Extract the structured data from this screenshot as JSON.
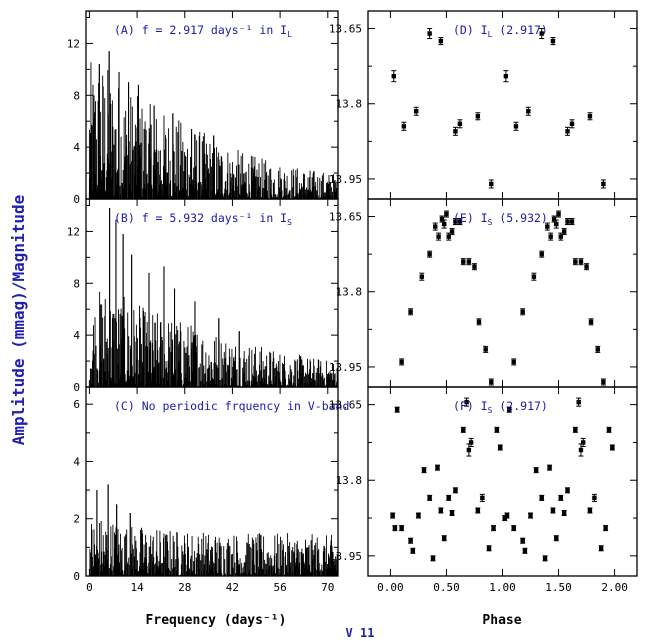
{
  "figure": {
    "y_title": "Amplitude (mmag)/Magnitude",
    "star_label": "V 11"
  },
  "chart_data": [
    {
      "id": "A",
      "type": "bar",
      "label": "(A) f = 2.917 days⁻¹ in I",
      "label_sub": "L",
      "xlim": [
        -1,
        73
      ],
      "ylim": [
        0,
        14.5
      ],
      "x_ticks": [
        0,
        14,
        28,
        42,
        56,
        70
      ],
      "y_ticks": [
        0,
        4,
        8,
        12
      ],
      "xlabel": "",
      "envelope": [
        [
          0,
          10.5
        ],
        [
          3,
          11.2
        ],
        [
          8,
          9.5
        ],
        [
          14,
          8.0
        ],
        [
          20,
          7.0
        ],
        [
          28,
          6.0
        ],
        [
          35,
          5.0
        ],
        [
          42,
          4.0
        ],
        [
          50,
          3.2
        ],
        [
          56,
          2.8
        ],
        [
          63,
          2.4
        ],
        [
          70,
          2.1
        ],
        [
          73,
          2.0
        ]
      ],
      "peaks": [
        [
          2.917,
          10.4
        ],
        [
          5.8,
          11.4
        ],
        [
          8.7,
          9.8
        ],
        [
          11.5,
          9.0
        ],
        [
          14.4,
          8.8
        ],
        [
          19.0,
          7.2
        ],
        [
          24.5,
          6.6
        ],
        [
          30.0,
          5.4
        ],
        [
          36.5,
          4.9
        ]
      ]
    },
    {
      "id": "B",
      "type": "bar",
      "label": "(B) f = 5.932 days⁻¹ in I",
      "label_sub": "S",
      "xlim": [
        -1,
        73
      ],
      "ylim": [
        0,
        14.5
      ],
      "x_ticks": [
        0,
        14,
        28,
        42,
        56,
        70
      ],
      "y_ticks": [
        0,
        4,
        8,
        12
      ],
      "xlabel": "",
      "envelope": [
        [
          0,
          6.5
        ],
        [
          4,
          8.0
        ],
        [
          10,
          7.0
        ],
        [
          16,
          6.2
        ],
        [
          24,
          5.5
        ],
        [
          32,
          4.8
        ],
        [
          40,
          4.0
        ],
        [
          48,
          3.4
        ],
        [
          56,
          2.8
        ],
        [
          64,
          2.4
        ],
        [
          70,
          2.1
        ],
        [
          73,
          2.0
        ]
      ],
      "peaks": [
        [
          5.932,
          13.8
        ],
        [
          7.8,
          12.9
        ],
        [
          9.9,
          11.8
        ],
        [
          12.4,
          10.2
        ],
        [
          17.5,
          8.8
        ],
        [
          21.9,
          9.3
        ],
        [
          25.0,
          7.6
        ],
        [
          31.0,
          6.6
        ],
        [
          38.0,
          5.3
        ],
        [
          44.0,
          4.3
        ]
      ]
    },
    {
      "id": "C",
      "type": "bar",
      "label": "(C) No periodic frquency in V-band",
      "label_sub": "",
      "xlim": [
        -1,
        73
      ],
      "ylim": [
        0,
        6.6
      ],
      "x_ticks": [
        0,
        14,
        28,
        42,
        56,
        70
      ],
      "y_ticks": [
        0,
        2,
        4,
        6
      ],
      "xlabel": "Frequency (days⁻¹)",
      "envelope": [
        [
          0,
          2.1
        ],
        [
          5,
          2.1
        ],
        [
          10,
          1.85
        ],
        [
          20,
          1.7
        ],
        [
          30,
          1.6
        ],
        [
          40,
          1.55
        ],
        [
          50,
          1.5
        ],
        [
          60,
          1.5
        ],
        [
          70,
          1.45
        ],
        [
          73,
          1.45
        ]
      ],
      "peaks": [
        [
          2.2,
          3.0
        ],
        [
          5.5,
          3.2
        ],
        [
          8.0,
          2.5
        ],
        [
          12.0,
          2.2
        ]
      ]
    },
    {
      "id": "D",
      "type": "scatter",
      "label": "(D) I",
      "label_sub": "L",
      "label_tail": " (2.917)",
      "xlim": [
        -0.2,
        2.2
      ],
      "ylim": [
        13.99,
        13.615
      ],
      "x_ticks": [
        0,
        0.5,
        1,
        1.5,
        2
      ],
      "y_ticks": [
        13.65,
        13.8,
        13.95
      ],
      "y_tick_labels": [
        "13.65",
        "13.8",
        "13.95"
      ],
      "xlabel": "",
      "points": [
        [
          0.03,
          13.745,
          0.011
        ],
        [
          0.12,
          13.845,
          0.008
        ],
        [
          0.23,
          13.815,
          0.008
        ],
        [
          0.35,
          13.66,
          0.01
        ],
        [
          0.45,
          13.675,
          0.007
        ],
        [
          0.58,
          13.855,
          0.008
        ],
        [
          0.62,
          13.84,
          0.008
        ],
        [
          0.78,
          13.825,
          0.007
        ],
        [
          0.9,
          13.96,
          0.008
        ],
        [
          1.03,
          13.745,
          0.011
        ],
        [
          1.12,
          13.845,
          0.008
        ],
        [
          1.23,
          13.815,
          0.008
        ],
        [
          1.35,
          13.66,
          0.01
        ],
        [
          1.45,
          13.675,
          0.007
        ],
        [
          1.58,
          13.855,
          0.008
        ],
        [
          1.62,
          13.84,
          0.008
        ],
        [
          1.78,
          13.825,
          0.007
        ],
        [
          1.9,
          13.96,
          0.008
        ]
      ]
    },
    {
      "id": "E",
      "type": "scatter",
      "label": "(E) I",
      "label_sub": "S",
      "label_tail": " (5.932)",
      "xlim": [
        -0.2,
        2.2
      ],
      "ylim": [
        13.99,
        13.615
      ],
      "x_ticks": [
        0,
        0.5,
        1,
        1.5,
        2
      ],
      "y_ticks": [
        13.65,
        13.8,
        13.95
      ],
      "y_tick_labels": [
        "13.65",
        "13.8",
        "13.95"
      ],
      "xlabel": "",
      "points": [
        [
          0.1,
          13.94,
          0.006
        ],
        [
          0.18,
          13.84,
          0.006
        ],
        [
          0.28,
          13.77,
          0.007
        ],
        [
          0.35,
          13.725,
          0.006
        ],
        [
          0.4,
          13.67,
          0.007
        ],
        [
          0.43,
          13.69,
          0.007
        ],
        [
          0.46,
          13.655,
          0.006
        ],
        [
          0.48,
          13.665,
          0.008
        ],
        [
          0.5,
          13.645,
          0.006
        ],
        [
          0.52,
          13.69,
          0.007
        ],
        [
          0.55,
          13.68,
          0.006
        ],
        [
          0.58,
          13.66,
          0.006
        ],
        [
          0.62,
          13.66,
          0.006
        ],
        [
          0.65,
          13.74,
          0.006
        ],
        [
          0.7,
          13.74,
          0.006
        ],
        [
          0.75,
          13.75,
          0.006
        ],
        [
          0.79,
          13.86,
          0.006
        ],
        [
          0.85,
          13.915,
          0.006
        ],
        [
          0.9,
          13.98,
          0.006
        ],
        [
          1.1,
          13.94,
          0.006
        ],
        [
          1.18,
          13.84,
          0.006
        ],
        [
          1.28,
          13.77,
          0.007
        ],
        [
          1.35,
          13.725,
          0.006
        ],
        [
          1.4,
          13.67,
          0.007
        ],
        [
          1.43,
          13.69,
          0.007
        ],
        [
          1.46,
          13.655,
          0.006
        ],
        [
          1.48,
          13.665,
          0.008
        ],
        [
          1.5,
          13.645,
          0.006
        ],
        [
          1.52,
          13.69,
          0.007
        ],
        [
          1.55,
          13.68,
          0.006
        ],
        [
          1.58,
          13.66,
          0.006
        ],
        [
          1.62,
          13.66,
          0.006
        ],
        [
          1.65,
          13.74,
          0.006
        ],
        [
          1.7,
          13.74,
          0.006
        ],
        [
          1.75,
          13.75,
          0.006
        ],
        [
          1.79,
          13.86,
          0.006
        ],
        [
          1.85,
          13.915,
          0.006
        ],
        [
          1.9,
          13.98,
          0.006
        ]
      ]
    },
    {
      "id": "F",
      "type": "scatter",
      "label": "(F) I",
      "label_sub": "S",
      "label_tail": " (2.917)",
      "xlim": [
        -0.2,
        2.2
      ],
      "ylim": [
        13.99,
        13.615
      ],
      "x_ticks": [
        0,
        0.5,
        1,
        1.5,
        2
      ],
      "y_ticks": [
        13.65,
        13.8,
        13.95
      ],
      "y_tick_labels": [
        "13.65",
        "13.8",
        "13.95"
      ],
      "xlabel": "Phase",
      "points": [
        [
          0.02,
          13.87,
          0.005
        ],
        [
          0.04,
          13.895,
          0.005
        ],
        [
          0.06,
          13.66,
          0.005
        ],
        [
          0.1,
          13.895,
          0.005
        ],
        [
          0.18,
          13.92,
          0.005
        ],
        [
          0.2,
          13.94,
          0.005
        ],
        [
          0.25,
          13.87,
          0.005
        ],
        [
          0.3,
          13.78,
          0.005
        ],
        [
          0.35,
          13.835,
          0.005
        ],
        [
          0.38,
          13.955,
          0.005
        ],
        [
          0.42,
          13.775,
          0.005
        ],
        [
          0.45,
          13.86,
          0.005
        ],
        [
          0.48,
          13.915,
          0.005
        ],
        [
          0.52,
          13.835,
          0.005
        ],
        [
          0.55,
          13.865,
          0.005
        ],
        [
          0.58,
          13.82,
          0.005
        ],
        [
          0.65,
          13.7,
          0.005
        ],
        [
          0.68,
          13.645,
          0.008
        ],
        [
          0.7,
          13.74,
          0.012
        ],
        [
          0.72,
          13.725,
          0.008
        ],
        [
          0.78,
          13.86,
          0.005
        ],
        [
          0.82,
          13.835,
          0.007
        ],
        [
          0.88,
          13.935,
          0.005
        ],
        [
          0.92,
          13.895,
          0.005
        ],
        [
          0.95,
          13.7,
          0.005
        ],
        [
          0.98,
          13.735,
          0.005
        ],
        [
          1.02,
          13.875,
          0.005
        ],
        [
          1.04,
          13.87,
          0.005
        ],
        [
          1.06,
          13.66,
          0.005
        ],
        [
          1.1,
          13.895,
          0.005
        ],
        [
          1.18,
          13.92,
          0.005
        ],
        [
          1.2,
          13.94,
          0.005
        ],
        [
          1.25,
          13.87,
          0.005
        ],
        [
          1.3,
          13.78,
          0.005
        ],
        [
          1.35,
          13.835,
          0.005
        ],
        [
          1.38,
          13.955,
          0.005
        ],
        [
          1.42,
          13.775,
          0.005
        ],
        [
          1.45,
          13.86,
          0.005
        ],
        [
          1.48,
          13.915,
          0.005
        ],
        [
          1.52,
          13.835,
          0.005
        ],
        [
          1.55,
          13.865,
          0.005
        ],
        [
          1.58,
          13.82,
          0.005
        ],
        [
          1.65,
          13.7,
          0.005
        ],
        [
          1.68,
          13.645,
          0.008
        ],
        [
          1.7,
          13.74,
          0.012
        ],
        [
          1.72,
          13.725,
          0.008
        ],
        [
          1.78,
          13.86,
          0.005
        ],
        [
          1.82,
          13.835,
          0.007
        ],
        [
          1.88,
          13.935,
          0.005
        ],
        [
          1.92,
          13.895,
          0.005
        ],
        [
          1.95,
          13.7,
          0.005
        ],
        [
          1.98,
          13.735,
          0.005
        ]
      ]
    }
  ]
}
